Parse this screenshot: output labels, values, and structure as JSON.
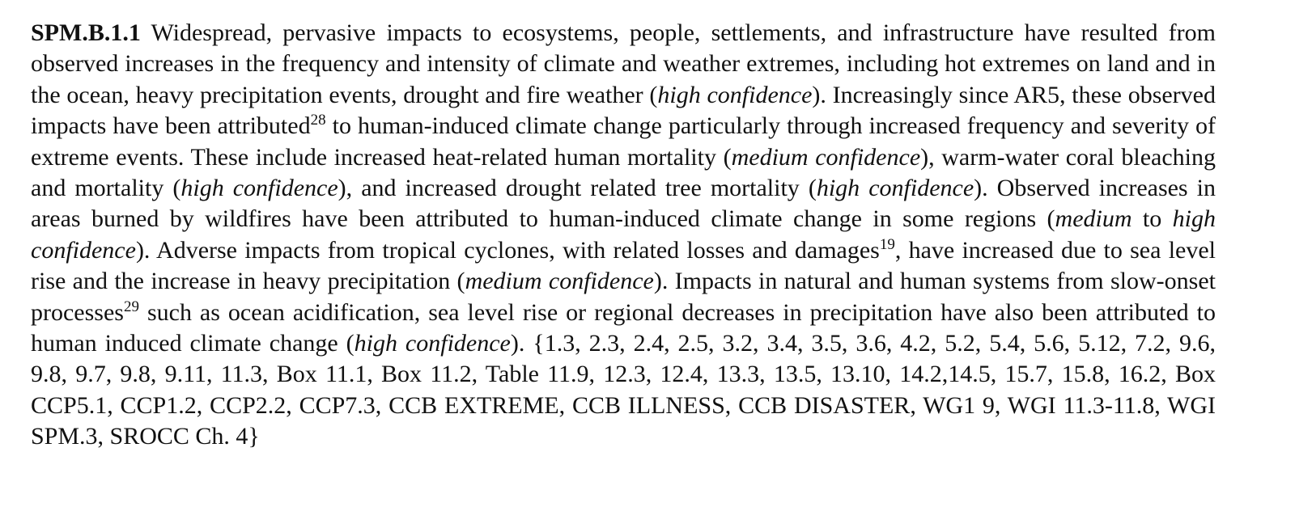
{
  "paragraph": {
    "label": "SPM.B.1.1",
    "s1": " Widespread, pervasive impacts to ecosystems, people, settlements, and infrastructure have resulted from observed increases in the frequency and intensity of climate and weather extremes, including hot extremes on land and in the ocean, heavy precipitation events, drought and fire weather (",
    "c1": "high confidence",
    "s2": "). Increasingly since AR5, these observed impacts have been attributed",
    "fn1": "28",
    "s3": " to human-induced climate change particularly through increased frequency and severity of extreme events. These include increased heat-related human mortality (",
    "c2": "medium confidence",
    "s4": "), warm-water coral bleaching and mortality (",
    "c3": "high confidence",
    "s5": "), and increased drought related tree mortality (",
    "c4": "high confidence",
    "s6": "). Observed increases in areas burned by wildfires have been attributed to human-induced climate change in some regions (",
    "c5a": "medium",
    "s7": " to ",
    "c5b": "high confidence",
    "s8": "). Adverse impacts from tropical cyclones, with related losses and damages",
    "fn2": "19",
    "s9": ", have increased due to sea level rise and the increase in heavy precipitation (",
    "c6": "medium confidence",
    "s10": "). Impacts in natural and human systems from slow-onset processes",
    "fn3": "29",
    "s11": " such as ocean acidification, sea level rise or regional decreases in precipitation have also been attributed to human induced climate change (",
    "c7": "high confidence",
    "s12": "). {1.3, 2.3, 2.4, 2.5, 3.2, 3.4, 3.5, 3.6, 4.2, 5.2, 5.4, 5.6, 5.12, 7.2, 9.6, 9.8, 9.7, 9.8, 9.11, 11.3, Box 11.1, Box 11.2, Table 11.9, 12.3, 12.4, 13.3, 13.5, 13.10, 14.2,14.5, 15.7, 15.8, 16.2, Box CCP5.1, CCP1.2, CCP2.2, CCP7.3, CCB EXTREME, CCB ILLNESS, CCB DISASTER, WG1 9, WGI 11.3-11.8, WGI SPM.3, SROCC Ch. 4}"
  }
}
